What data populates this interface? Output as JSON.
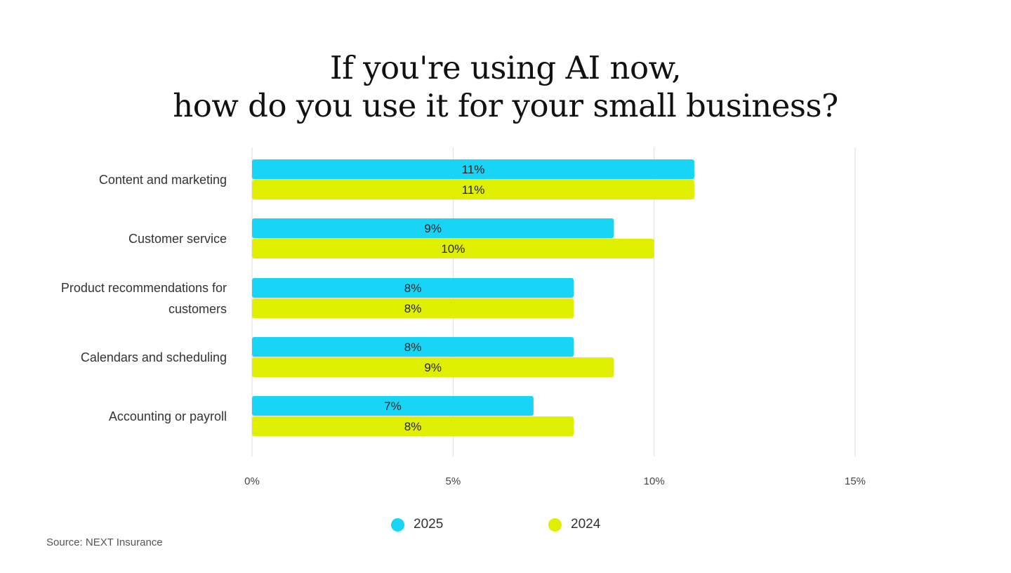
{
  "title": {
    "line1": "If you're using AI now,",
    "line2": "how do you use it for your small business?"
  },
  "source": "Source: NEXT Insurance",
  "chart_data": {
    "type": "bar",
    "orientation": "horizontal",
    "categories": [
      [
        "Content and marketing"
      ],
      [
        "Customer service"
      ],
      [
        "Product recommendations for",
        "customers"
      ],
      [
        "Calendars and scheduling"
      ],
      [
        "Accounting or payroll"
      ]
    ],
    "series": [
      {
        "name": "2025",
        "color": "#18d4f5",
        "values": [
          11,
          9,
          8,
          8,
          7
        ],
        "labels": [
          "11%",
          "9%",
          "8%",
          "8%",
          "7%"
        ]
      },
      {
        "name": "2024",
        "color": "#e0ef00",
        "values": [
          11,
          10,
          8,
          9,
          8
        ],
        "labels": [
          "11%",
          "10%",
          "8%",
          "9%",
          "8%"
        ]
      }
    ],
    "xlim": [
      0,
      15
    ],
    "xticks": [
      "0%",
      "5%",
      "10%",
      "15%"
    ],
    "grid": true,
    "legend_position": "bottom"
  }
}
